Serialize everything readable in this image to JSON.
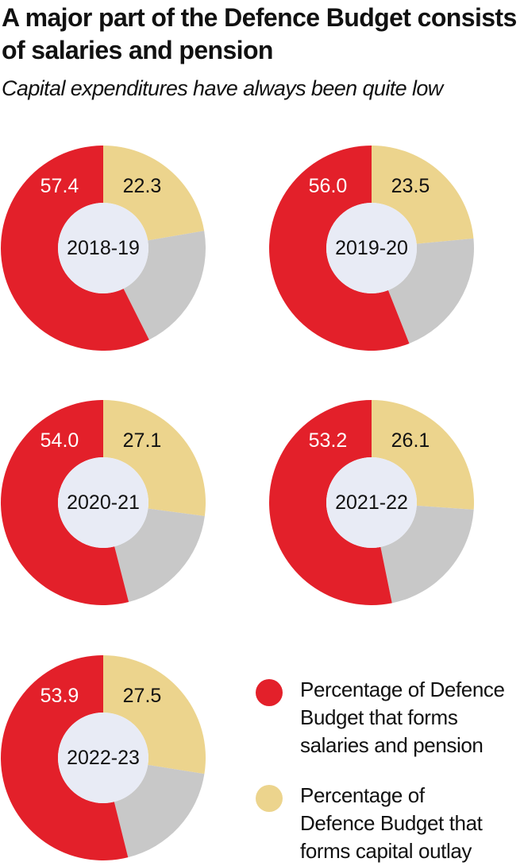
{
  "title": "A major part of the Defence Budget consists of salaries and pension",
  "subtitle": "Capital expenditures have always been quite low",
  "colors": {
    "salaries": "#e3202a",
    "capital": "#ecd48d",
    "other": "#c8c8c8",
    "center": "#e8ebf5"
  },
  "chart_data": {
    "type": "pie",
    "variant": "donut",
    "title": "A major part of the Defence Budget consists of salaries and pension",
    "subtitle": "Capital expenditures have always been quite low",
    "unit": "%",
    "series": [
      {
        "name": "Percentage of Defence Budget that forms salaries and pension"
      },
      {
        "name": "Percentage of Defence Budget that forms capital outlay"
      }
    ],
    "charts": [
      {
        "label": "2018-19",
        "salaries_pension": 57.4,
        "capital_outlay": 22.3
      },
      {
        "label": "2019-20",
        "salaries_pension": 56.0,
        "capital_outlay": 23.5
      },
      {
        "label": "2020-21",
        "salaries_pension": 54.0,
        "capital_outlay": 27.1
      },
      {
        "label": "2021-22",
        "salaries_pension": 53.2,
        "capital_outlay": 26.1
      },
      {
        "label": "2022-23",
        "salaries_pension": 53.9,
        "capital_outlay": 27.5
      }
    ],
    "legend_placement": "bottom-right"
  },
  "legend": {
    "salaries_lines": [
      "Percentage of Defence",
      "Budget that forms",
      "salaries and pension"
    ],
    "capital_lines": [
      "Percentage of",
      "Defence Budget that",
      "forms capital outlay"
    ]
  }
}
